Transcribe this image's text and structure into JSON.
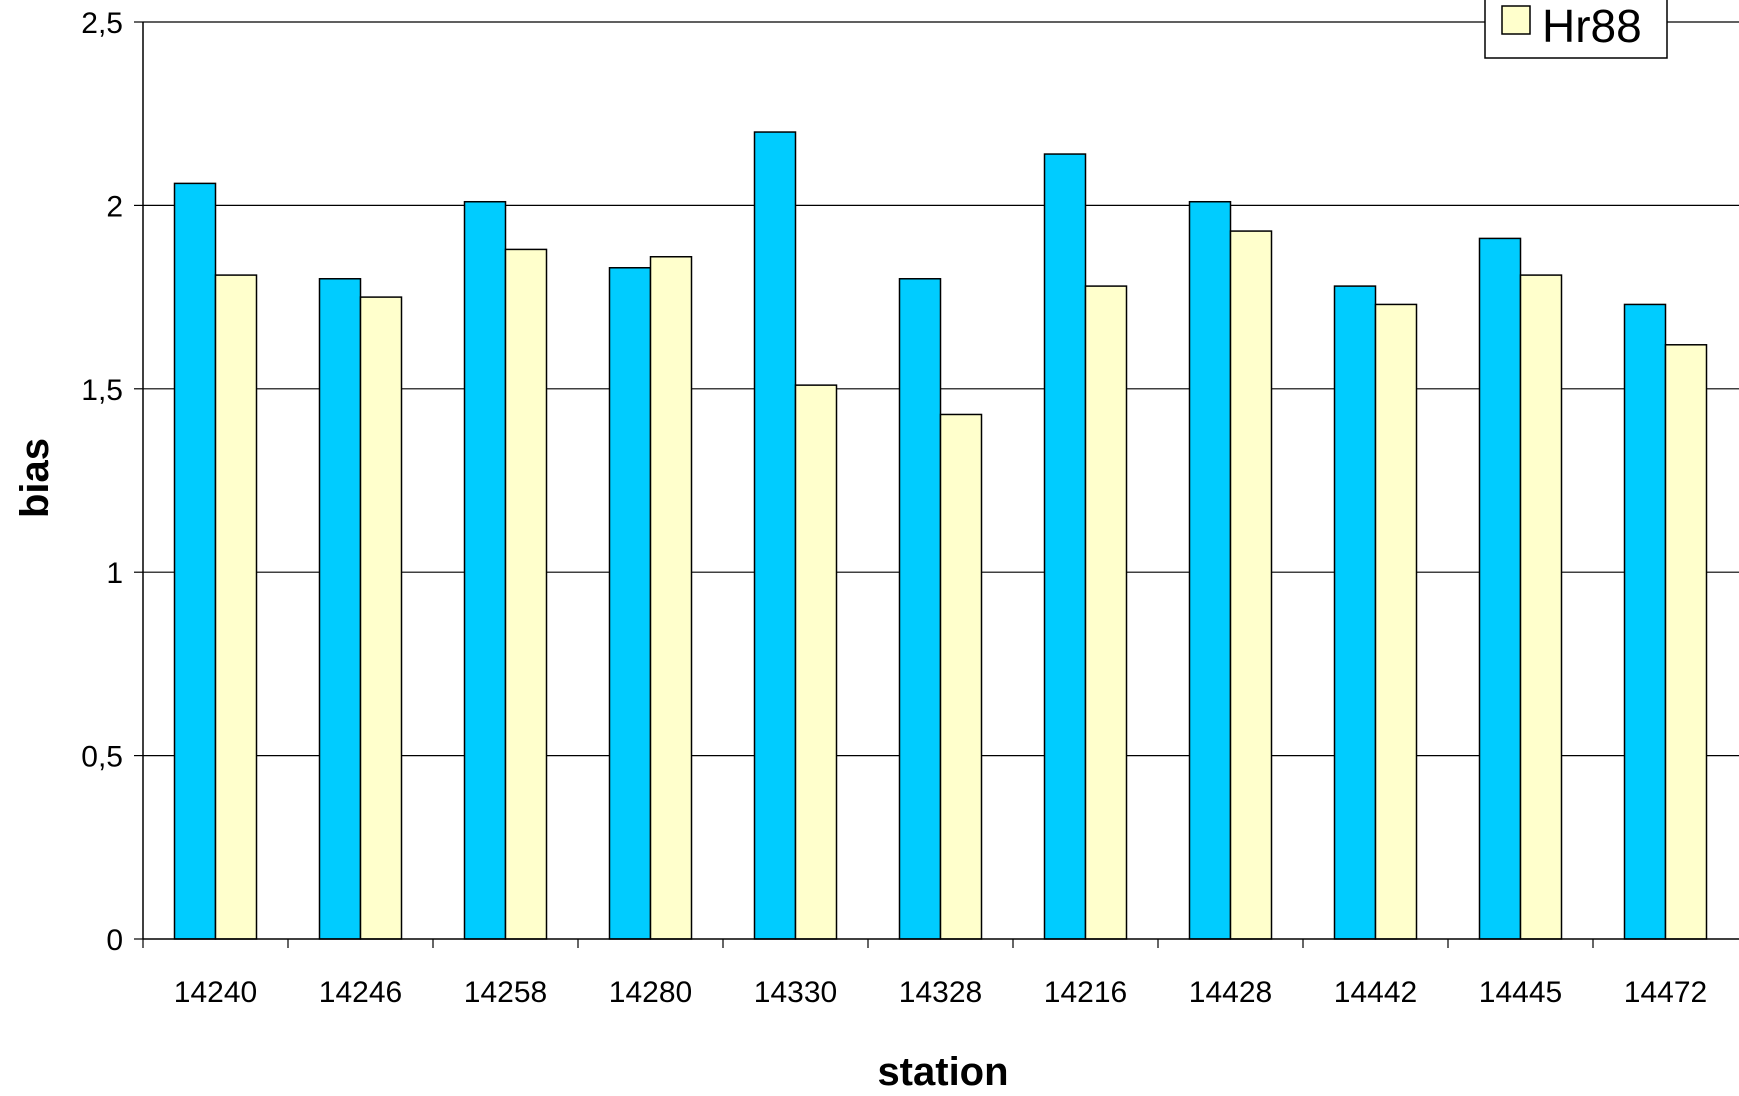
{
  "chart_data": {
    "type": "bar",
    "title": "",
    "xlabel": "station",
    "ylabel": "bias",
    "ylim": [
      0,
      2.5
    ],
    "yticks": [
      0,
      0.5,
      1,
      1.5,
      2,
      2.5
    ],
    "ytick_labels": [
      "0",
      "0,5",
      "1",
      "1,5",
      "2",
      "2,5"
    ],
    "grid": true,
    "legend_placement": "top-right",
    "categories": [
      "14240",
      "14246",
      "14258",
      "14280",
      "14330",
      "14328",
      "14216",
      "14428",
      "14442",
      "14445",
      "14472"
    ],
    "series": [
      {
        "values": [
          2.06,
          1.8,
          2.01,
          1.83,
          2.2,
          1.8,
          2.14,
          2.01,
          1.78,
          1.91,
          1.73
        ],
        "color": "#00CCFF"
      },
      {
        "name": "Hr88",
        "values": [
          1.81,
          1.75,
          1.88,
          1.86,
          1.51,
          1.43,
          1.78,
          1.93,
          1.73,
          1.81,
          1.62
        ],
        "color": "#FFFFCC"
      }
    ]
  }
}
